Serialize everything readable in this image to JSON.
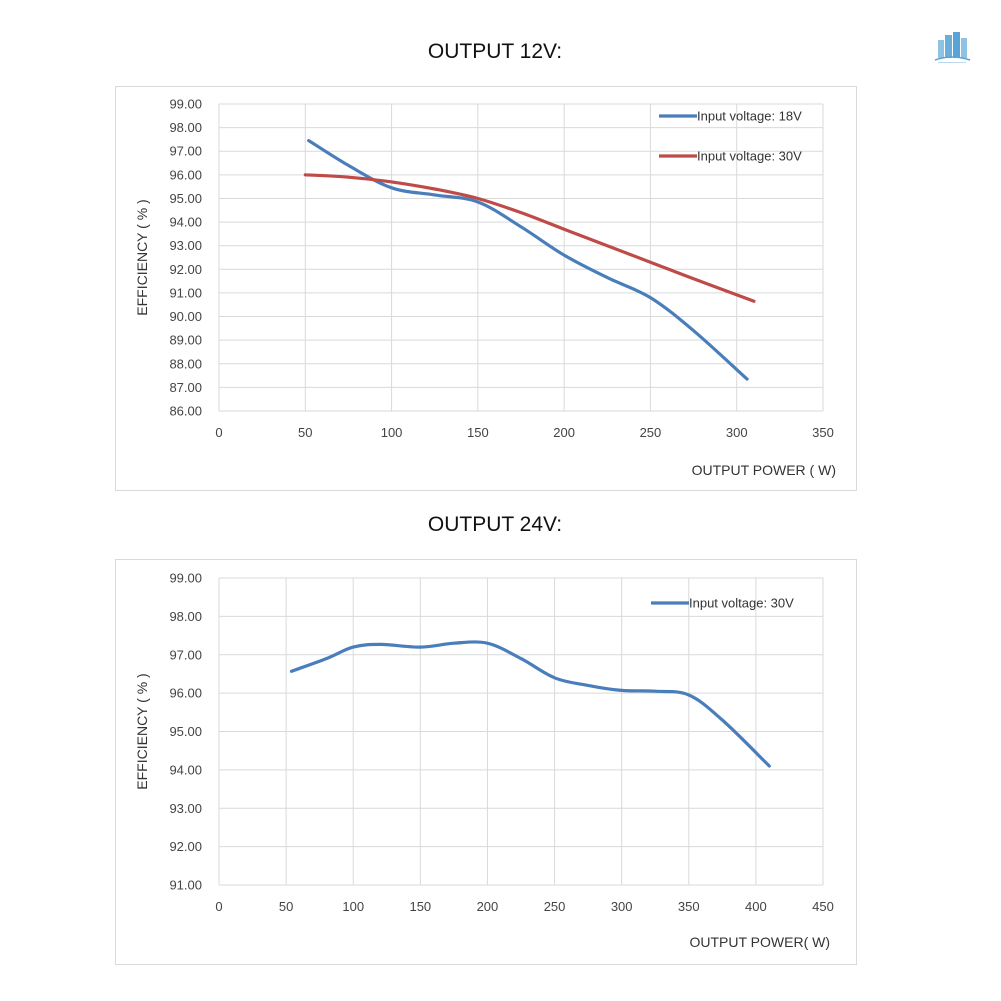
{
  "page": {
    "logo_icon": "building-logo-icon"
  },
  "colors": {
    "blue": "#4a7ebb",
    "red": "#be4b48",
    "grid": "#d9d9d9",
    "frame": "#d9d9d9"
  },
  "chart_data": [
    {
      "type": "line",
      "title": "OUTPUT 12V:",
      "xlabel": "OUTPUT POWER ( W)",
      "ylabel": "EFFICIENCY ( % )",
      "xlim": [
        0,
        350
      ],
      "ylim": [
        86,
        99
      ],
      "xticks": [
        "0",
        "50",
        "100",
        "150",
        "200",
        "250",
        "300",
        "350"
      ],
      "yticks": [
        "86.00",
        "87.00",
        "88.00",
        "89.00",
        "90.00",
        "91.00",
        "92.00",
        "93.00",
        "94.00",
        "95.00",
        "96.00",
        "97.00",
        "98.00",
        "99.00"
      ],
      "grid": true,
      "legend_position": "top-right",
      "series": [
        {
          "name": "Input voltage: 18V",
          "color": "#4a7ebb",
          "x": [
            52,
            75,
            100,
            125,
            150,
            175,
            200,
            225,
            250,
            275,
            306
          ],
          "y": [
            97.45,
            96.4,
            95.45,
            95.15,
            94.85,
            93.8,
            92.6,
            91.65,
            90.8,
            89.4,
            87.35
          ]
        },
        {
          "name": "Input voltage: 30V",
          "color": "#be4b48",
          "x": [
            50,
            75,
            100,
            125,
            150,
            175,
            200,
            225,
            250,
            275,
            310
          ],
          "y": [
            96.0,
            95.9,
            95.7,
            95.4,
            95.0,
            94.4,
            93.7,
            93.0,
            92.3,
            91.6,
            90.65
          ]
        }
      ]
    },
    {
      "type": "line",
      "title": "OUTPUT 24V:",
      "xlabel": "OUTPUT POWER( W)",
      "ylabel": "EFFICIENCY ( % )",
      "xlim": [
        0,
        450
      ],
      "ylim": [
        91,
        99
      ],
      "xticks": [
        "0",
        "50",
        "100",
        "150",
        "200",
        "250",
        "300",
        "350",
        "400",
        "450"
      ],
      "yticks": [
        "91.00",
        "92.00",
        "93.00",
        "94.00",
        "95.00",
        "96.00",
        "97.00",
        "98.00",
        "99.00"
      ],
      "grid": true,
      "legend_position": "top-right",
      "series": [
        {
          "name": "Input voltage: 30V",
          "color": "#4a7ebb",
          "x": [
            54,
            80,
            100,
            120,
            150,
            175,
            200,
            225,
            250,
            275,
            300,
            325,
            350,
            375,
            410
          ],
          "y": [
            96.57,
            96.9,
            97.2,
            97.27,
            97.2,
            97.3,
            97.3,
            96.9,
            96.4,
            96.2,
            96.07,
            96.05,
            95.95,
            95.3,
            94.1
          ]
        }
      ]
    }
  ]
}
